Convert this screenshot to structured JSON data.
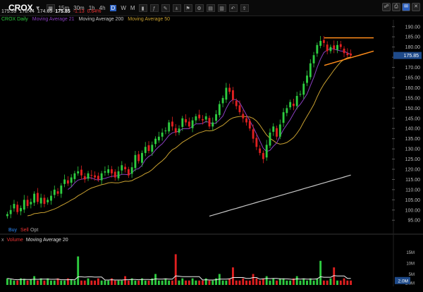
{
  "toolbar": {
    "symbol": "CROX",
    "timeframes": [
      "15m",
      "30m",
      "1h",
      "4h",
      "D",
      "W",
      "M"
    ],
    "active_timeframe": "D"
  },
  "quote": {
    "open": "175.59",
    "high": "178.44",
    "low": "174.65",
    "close": "175.85",
    "change": "-1.13",
    "change_pct": "0.64%"
  },
  "legend": {
    "daily": "CROX Daily",
    "ma21": "Moving Average 21",
    "ma200": "Moving Average 200",
    "ma50": "Moving Average 50"
  },
  "colors": {
    "up": "#2ecc40",
    "down": "#e02020",
    "ma21": "#8a3fc0",
    "ma50": "#c8a030",
    "ma200": "#c8c8c8",
    "trend": "#ff8c1a",
    "price_tag": "#1e4a8a"
  },
  "buttons": {
    "buy": "Buy",
    "sell": "Sell",
    "opt": "Opt"
  },
  "volume_legend": {
    "x": "x",
    "label": "Volume",
    "ma": "Moving Average 20"
  },
  "price_tag": "175.85",
  "volume_tag": "2.0M",
  "chart_data": {
    "type": "candlestick",
    "y_ticks": [
      "190.00",
      "185.00",
      "180.00",
      "175.00",
      "170.00",
      "165.00",
      "160.00",
      "155.00",
      "150.00",
      "145.00",
      "140.00",
      "135.00",
      "130.00",
      "125.00",
      "120.00",
      "115.00",
      "110.00",
      "105.00",
      "100.00",
      "95.00"
    ],
    "ylim": [
      93,
      192
    ],
    "volume_ticks": [
      "15M",
      "10M",
      "5M",
      "1.0M"
    ],
    "volume_ylim": [
      0,
      18
    ],
    "closes": [
      98,
      100,
      103,
      99,
      101,
      105,
      102,
      104,
      108,
      104,
      106,
      103,
      105,
      107,
      110,
      108,
      112,
      115,
      113,
      116,
      118,
      119,
      117,
      115,
      118,
      117,
      116,
      115,
      118,
      119,
      120,
      118,
      116,
      119,
      122,
      120,
      117,
      121,
      127,
      124,
      128,
      131,
      129,
      132,
      135,
      136,
      138,
      139,
      143,
      141,
      138,
      140,
      145,
      143,
      141,
      144,
      146,
      145,
      144,
      146,
      141,
      143,
      147,
      152,
      155,
      160,
      158,
      154,
      151,
      148,
      145,
      143,
      140,
      135,
      131,
      128,
      125,
      132,
      138,
      141,
      136,
      142,
      148,
      150,
      153,
      151,
      156,
      157,
      162,
      166,
      172,
      176,
      181,
      183,
      182,
      178,
      180,
      179,
      181,
      180,
      177,
      176,
      175.85
    ],
    "volumes": [
      3,
      2.5,
      2,
      2,
      3,
      2.8,
      2,
      2.5,
      4,
      2,
      3,
      2,
      3,
      2,
      2,
      3,
      2,
      2,
      3,
      2.5,
      2,
      13,
      2,
      2,
      3,
      2,
      2,
      3,
      2,
      2,
      2,
      3,
      2,
      2,
      2,
      4,
      2,
      3,
      2,
      2,
      3,
      2,
      2,
      3,
      5,
      2,
      2,
      3,
      2,
      2,
      14,
      2,
      3,
      2,
      2,
      3,
      2,
      2,
      2,
      3,
      2,
      2,
      3,
      5,
      2,
      2,
      3,
      8,
      2,
      2,
      3,
      2,
      2,
      5,
      3,
      2,
      3,
      4,
      2,
      3,
      2,
      3,
      3,
      2,
      2,
      3,
      4,
      2,
      3,
      2,
      3,
      2,
      3,
      11,
      2,
      2,
      3,
      8,
      2,
      2,
      3,
      2,
      2
    ]
  }
}
